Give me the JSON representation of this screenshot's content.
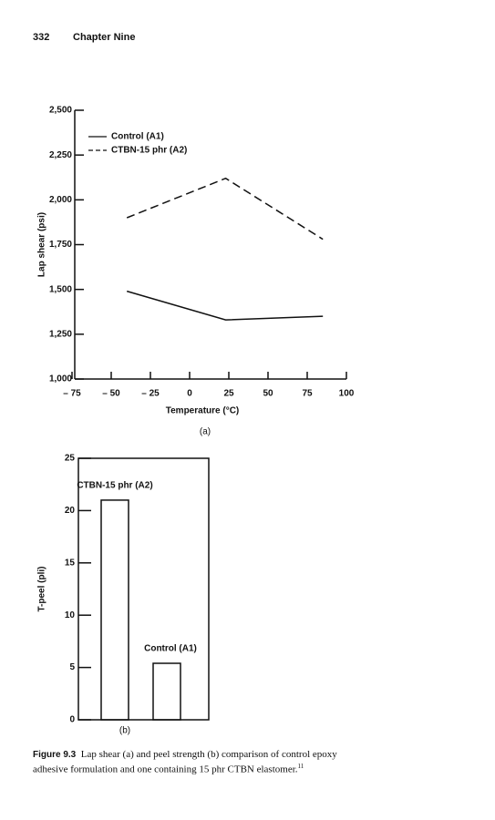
{
  "header": {
    "page": "332",
    "chapter": "Chapter Nine"
  },
  "chart_data": [
    {
      "type": "line",
      "label": "(a)",
      "ylabel": "Lap shear (psi)",
      "xlabel": "Temperature (°C)",
      "xlim": [
        -75,
        100
      ],
      "xticks": [
        {
          "value": -75,
          "label": "– 75"
        },
        {
          "value": -50,
          "label": "– 50"
        },
        {
          "value": -25,
          "label": "– 25"
        },
        0,
        25,
        50,
        75,
        100
      ],
      "ylim": [
        1000,
        2500
      ],
      "yticks": [
        {
          "value": 1000,
          "label": "1,000"
        },
        {
          "value": 1250,
          "label": "1,250"
        },
        {
          "value": 1500,
          "label": "1,500"
        },
        {
          "value": 1750,
          "label": "1,750"
        },
        {
          "value": 2000,
          "label": "2,000"
        },
        {
          "value": 2250,
          "label": "2,250"
        },
        {
          "value": 2500,
          "label": "2,500"
        }
      ],
      "series": [
        {
          "name": "Control (A1)",
          "color": "#111111",
          "linestyle": "solid",
          "x": [
            -40,
            23,
            85
          ],
          "values": [
            1490,
            1330,
            1350
          ]
        },
        {
          "name": "CTBN-15 phr (A2)",
          "color": "#111111",
          "linestyle": "dashed",
          "x": [
            -40,
            23,
            85
          ],
          "values": [
            1900,
            2120,
            1780
          ]
        }
      ]
    },
    {
      "type": "bar",
      "label": "(b)",
      "ylabel": "T-peel (pli)",
      "categories": [
        "CTBN-15 phr (A2)",
        "Control (A1)"
      ],
      "values": [
        21,
        5.4
      ],
      "color": "#111111",
      "ylim": [
        0,
        25
      ],
      "yticks": [
        0,
        5,
        10,
        15,
        20,
        25
      ]
    }
  ],
  "caption": {
    "label": "Figure 9.3",
    "text": "Lap shear (a) and peel strength (b) comparison of control epoxy adhesive formulation and one containing 15 phr CTBN elastomer.",
    "ref": "11"
  }
}
